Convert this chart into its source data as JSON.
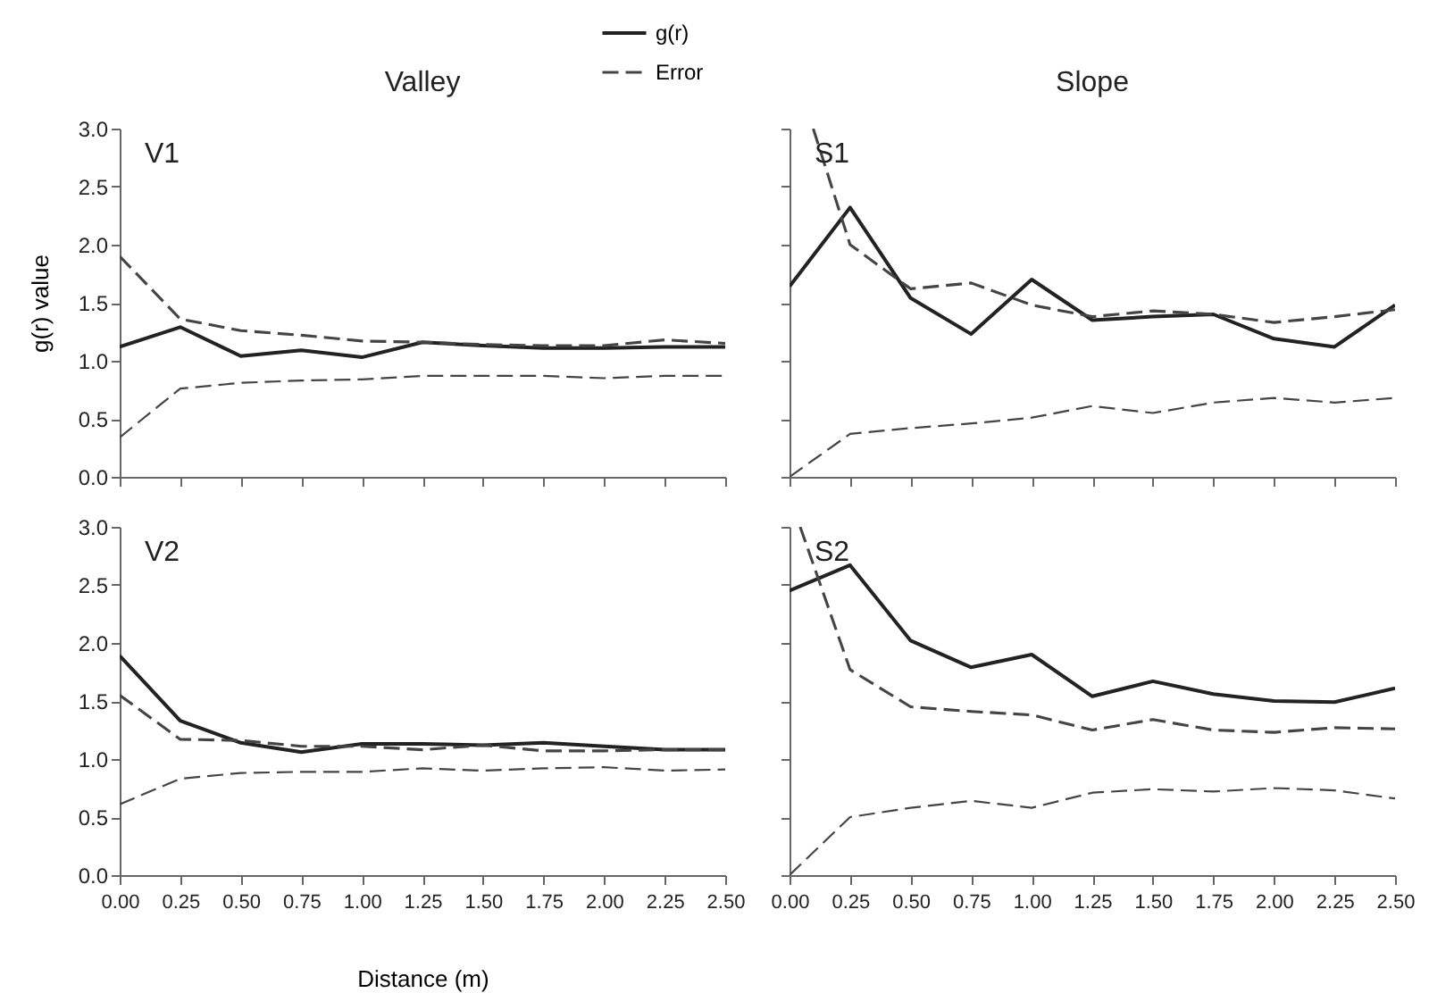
{
  "chart_data": [
    {
      "type": "line",
      "title": "Valley",
      "ylabel": "g(r) value",
      "annotations": [
        "V1"
      ],
      "legend": "top right",
      "tick_labels": "y",
      "x": [
        0,
        0.25,
        0.5,
        0.75,
        1.0,
        1.25,
        1.5,
        1.75,
        2.0,
        2.25,
        2.5
      ],
      "series": [
        {
          "name": "g(r)",
          "color": "#222222",
          "line_style": "solid",
          "values": [
            1.12,
            1.29,
            1.04,
            1.09,
            1.03,
            1.16,
            1.13,
            1.11,
            1.11,
            1.12,
            1.12
          ]
        },
        {
          "name": "Error",
          "color": "#444444",
          "line_style": "dashed",
          "values": [
            1.9,
            1.36,
            1.26,
            1.22,
            1.17,
            1.16,
            1.14,
            1.13,
            1.13,
            1.18,
            1.15
          ]
        },
        {
          "color": "#444444",
          "line_style": "dashed",
          "values": [
            0.34,
            0.76,
            0.81,
            0.83,
            0.84,
            0.87,
            0.87,
            0.87,
            0.85,
            0.87,
            0.87
          ]
        }
      ],
      "xlim": [
        0,
        2.5
      ],
      "ylim": [
        0,
        3
      ],
      "xticks": [
        {
          "value": 0,
          "label": null
        },
        {
          "value": 0.25,
          "label": null
        },
        {
          "value": 0.5,
          "label": null
        },
        {
          "value": 0.75,
          "label": null
        },
        {
          "value": 1,
          "label": null
        },
        {
          "value": 1.25,
          "label": null
        },
        {
          "value": 1.5,
          "label": null
        },
        {
          "value": 1.75,
          "label": null
        },
        {
          "value": 2,
          "label": null
        },
        {
          "value": 2.25,
          "label": null
        },
        {
          "value": 2.5,
          "label": null
        }
      ],
      "yticks": [
        {
          "value": 0,
          "label": "0.0"
        },
        {
          "value": 0.5,
          "label": "0.5"
        },
        {
          "value": 1,
          "label": "1.0"
        },
        {
          "value": 1.5,
          "label": "1.5"
        },
        {
          "value": 2,
          "label": "2.0"
        },
        {
          "value": 2.5,
          "label": "2.5"
        },
        {
          "value": 3,
          "label": "3.0"
        }
      ]
    },
    {
      "type": "line",
      "title": "Slope",
      "annotations": [
        "S1"
      ],
      "tick_labels": false,
      "x": [
        0,
        0.25,
        0.5,
        0.75,
        1.0,
        1.25,
        1.5,
        1.75,
        2.0,
        2.25,
        2.5
      ],
      "series": [
        {
          "color": "#222222",
          "line_style": "solid",
          "values": [
            1.64,
            2.32,
            1.54,
            1.23,
            1.7,
            1.35,
            1.38,
            1.4,
            1.19,
            1.12,
            1.48
          ]
        },
        {
          "color": "#444444",
          "line_style": "dashed",
          "x": [
            0.098,
            0.25,
            0.5,
            0.75,
            1.0,
            1.25,
            1.5,
            1.75,
            2.0,
            2.25,
            2.5
          ],
          "values": [
            3.0,
            2.0,
            1.62,
            1.67,
            1.48,
            1.38,
            1.43,
            1.4,
            1.33,
            1.38,
            1.44
          ]
        },
        {
          "color": "#444444",
          "line_style": "dashed",
          "values": [
            0.0,
            0.37,
            0.42,
            0.46,
            0.51,
            0.61,
            0.55,
            0.64,
            0.68,
            0.64,
            0.68
          ]
        }
      ],
      "xlim": [
        0,
        2.5
      ],
      "ylim": [
        0,
        3
      ],
      "xticks": [
        {
          "value": 0,
          "label": null
        },
        {
          "value": 0.25,
          "label": null
        },
        {
          "value": 0.5,
          "label": null
        },
        {
          "value": 0.75,
          "label": null
        },
        {
          "value": 1,
          "label": null
        },
        {
          "value": 1.25,
          "label": null
        },
        {
          "value": 1.5,
          "label": null
        },
        {
          "value": 1.75,
          "label": null
        },
        {
          "value": 2,
          "label": null
        },
        {
          "value": 2.25,
          "label": null
        },
        {
          "value": 2.5,
          "label": null
        }
      ],
      "yticks": [
        {
          "value": 0,
          "label": null
        },
        {
          "value": 0.5,
          "label": null
        },
        {
          "value": 1,
          "label": null
        },
        {
          "value": 1.5,
          "label": null
        },
        {
          "value": 2,
          "label": null
        },
        {
          "value": 2.5,
          "label": null
        },
        {
          "value": 3,
          "label": null
        }
      ]
    },
    {
      "type": "line",
      "xlabel": "Distance (m)",
      "annotations": [
        "V2"
      ],
      "x": [
        0,
        0.25,
        0.5,
        0.75,
        1.0,
        1.25,
        1.5,
        1.75,
        2.0,
        2.25,
        2.5
      ],
      "series": [
        {
          "color": "#222222",
          "line_style": "solid",
          "values": [
            1.89,
            1.33,
            1.14,
            1.06,
            1.13,
            1.13,
            1.12,
            1.14,
            1.11,
            1.08,
            1.08
          ]
        },
        {
          "color": "#444444",
          "line_style": "dashed",
          "values": [
            1.55,
            1.17,
            1.16,
            1.11,
            1.11,
            1.08,
            1.12,
            1.07,
            1.07,
            1.08,
            1.08
          ]
        },
        {
          "color": "#444444",
          "line_style": "dashed",
          "values": [
            0.61,
            0.83,
            0.88,
            0.89,
            0.89,
            0.92,
            0.9,
            0.92,
            0.93,
            0.9,
            0.91
          ]
        }
      ],
      "xlim": [
        0,
        2.5
      ],
      "ylim": [
        0,
        3
      ],
      "xticks": [
        {
          "value": 0,
          "label": "0.00"
        },
        {
          "value": 0.25,
          "label": "0.25"
        },
        {
          "value": 0.5,
          "label": "0.50"
        },
        {
          "value": 0.75,
          "label": "0.75"
        },
        {
          "value": 1,
          "label": "1.00"
        },
        {
          "value": 1.25,
          "label": "1.25"
        },
        {
          "value": 1.5,
          "label": "1.50"
        },
        {
          "value": 1.75,
          "label": "1.75"
        },
        {
          "value": 2,
          "label": "2.00"
        },
        {
          "value": 2.25,
          "label": "2.25"
        },
        {
          "value": 2.5,
          "label": "2.50"
        }
      ],
      "yticks": [
        {
          "value": 0,
          "label": "0.0"
        },
        {
          "value": 0.5,
          "label": "0.5"
        },
        {
          "value": 1,
          "label": "1.0"
        },
        {
          "value": 1.5,
          "label": "1.5"
        },
        {
          "value": 2,
          "label": "2.0"
        },
        {
          "value": 2.5,
          "label": "2.5"
        },
        {
          "value": 3,
          "label": "3.0"
        }
      ]
    },
    {
      "type": "line",
      "annotations": [
        "S2"
      ],
      "tick_labels": "x",
      "x": [
        0,
        0.25,
        0.5,
        0.75,
        1.0,
        1.25,
        1.5,
        1.75,
        2.0,
        2.25,
        2.5
      ],
      "series": [
        {
          "color": "#222222",
          "line_style": "solid",
          "values": [
            2.45,
            2.67,
            2.02,
            1.79,
            1.9,
            1.54,
            1.67,
            1.56,
            1.5,
            1.49,
            1.61
          ]
        },
        {
          "color": "#444444",
          "line_style": "dashed",
          "x": [
            0.044,
            0.25,
            0.5,
            0.75,
            1.0,
            1.25,
            1.5,
            1.75,
            2.0,
            2.25,
            2.5
          ],
          "values": [
            3.0,
            1.77,
            1.45,
            1.41,
            1.38,
            1.25,
            1.34,
            1.25,
            1.23,
            1.27,
            1.26
          ]
        },
        {
          "color": "#444444",
          "line_style": "dashed",
          "values": [
            0.0,
            0.5,
            0.58,
            0.64,
            0.58,
            0.71,
            0.74,
            0.72,
            0.75,
            0.73,
            0.66
          ]
        }
      ],
      "xlim": [
        0,
        2.5
      ],
      "ylim": [
        0,
        3
      ],
      "xticks": [
        {
          "value": 0,
          "label": "0.00"
        },
        {
          "value": 0.25,
          "label": "0.25"
        },
        {
          "value": 0.5,
          "label": "0.50"
        },
        {
          "value": 0.75,
          "label": "0.75"
        },
        {
          "value": 1,
          "label": "1.00"
        },
        {
          "value": 1.25,
          "label": "1.25"
        },
        {
          "value": 1.5,
          "label": "1.50"
        },
        {
          "value": 1.75,
          "label": "1.75"
        },
        {
          "value": 2,
          "label": "2.00"
        },
        {
          "value": 2.25,
          "label": "2.25"
        },
        {
          "value": 2.5,
          "label": "2.50"
        }
      ],
      "yticks": [
        {
          "value": 0,
          "label": null
        },
        {
          "value": 0.5,
          "label": null
        },
        {
          "value": 1,
          "label": null
        },
        {
          "value": 1.5,
          "label": null
        },
        {
          "value": 2,
          "label": null
        },
        {
          "value": 2.5,
          "label": null
        },
        {
          "value": 3,
          "label": null
        }
      ]
    }
  ]
}
